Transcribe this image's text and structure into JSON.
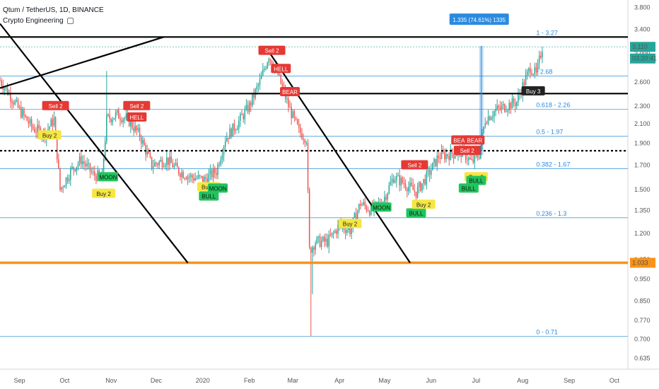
{
  "header": {
    "symbol": "Qtum / TetherUS, 1D, BINANCE",
    "indicator": "Crypto Engineering",
    "indicator_icon": "eye-icon"
  },
  "colors": {
    "up": "#26a69a",
    "down": "#ef5350",
    "fib": "#4a9fd8",
    "trend": "#000000",
    "support": "#f7931a",
    "measure": "#2a8be0",
    "sell_label": "#e53935",
    "buy_label": "#f5e642",
    "bull_label": "#21c45d"
  },
  "chart_data": {
    "type": "candlestick",
    "y_axis_scale": "log",
    "y_ticks": [
      "3.800",
      "3.400",
      "3.000",
      "2.600",
      "2.300",
      "2.100",
      "1.900",
      "1.700",
      "1.500",
      "1.350",
      "1.200",
      "1.050",
      "0.950",
      "0.850",
      "0.770",
      "0.700",
      "0.635"
    ],
    "x_ticks": [
      "Sep",
      "Oct",
      "Nov",
      "Dec",
      "2020",
      "Feb",
      "Mar",
      "Apr",
      "May",
      "Jun",
      "Jul",
      "Aug",
      "Sep",
      "Oct"
    ],
    "x_range": [
      "2019-08-19",
      "2020-10-10"
    ],
    "price_range": [
      0.6,
      3.95
    ],
    "fib_levels": [
      {
        "label": "1 - 3.27",
        "price": 3.27
      },
      {
        "label": "- 2.68",
        "price": 2.68
      },
      {
        "label": "0.618 - 2.26",
        "price": 2.26
      },
      {
        "label": "0.5 - 1.97",
        "price": 1.97
      },
      {
        "label": "0.382 - 1.67",
        "price": 1.67
      },
      {
        "label": "0.236 - 1.3",
        "price": 1.3
      },
      {
        "label": "0 - 0.71",
        "price": 0.71
      }
    ],
    "horizontal_lines": [
      {
        "price": 3.27,
        "style": "solid",
        "color": "#000000"
      },
      {
        "price": 2.45,
        "style": "solid",
        "color": "#000000"
      },
      {
        "price": 1.83,
        "style": "dotted",
        "color": "#000000"
      },
      {
        "price": 1.033,
        "style": "solid",
        "color": "#f7931a"
      }
    ],
    "trendlines": [
      {
        "from": [
          "2019-08-19",
          2.52
        ],
        "to": [
          "2019-12-06",
          3.27
        ]
      },
      {
        "from": [
          "2019-08-19",
          3.5
        ],
        "to": [
          "2019-12-22",
          1.033
        ]
      },
      {
        "from": [
          "2020-02-15",
          3.0
        ],
        "to": [
          "2020-05-18",
          1.033
        ]
      }
    ],
    "measure": {
      "label": "1.335 (74.61%) 1335",
      "from": [
        "2020-07-03",
        1.79
      ],
      "to": [
        "2020-07-03",
        3.125
      ]
    },
    "price_badges": [
      {
        "text": "3.110",
        "price": 3.11,
        "color": "#26a69a"
      },
      {
        "text": "03:20:41",
        "price": 2.93,
        "color": "#26a69a"
      },
      {
        "text": "1.033",
        "price": 1.033,
        "color": "#f7931a"
      }
    ],
    "signals": [
      {
        "text": "Sell 2",
        "kind": "sell",
        "date": "2019-09-25",
        "price": 2.3
      },
      {
        "text": "Buy 2",
        "kind": "buy",
        "date": "2019-09-21",
        "price": 1.98
      },
      {
        "text": "Sell 2",
        "kind": "sell",
        "date": "2019-11-18",
        "price": 2.3
      },
      {
        "text": "HELL",
        "kind": "sell",
        "date": "2019-11-18",
        "price": 2.17
      },
      {
        "text": "MOON",
        "kind": "bull",
        "date": "2019-10-30",
        "price": 1.6
      },
      {
        "text": "Buy 2",
        "kind": "buy",
        "date": "2019-10-27",
        "price": 1.47
      },
      {
        "text": "Buy 2",
        "kind": "buy",
        "date": "2020-01-05",
        "price": 1.52
      },
      {
        "text": "MOON",
        "kind": "bull",
        "date": "2020-01-11",
        "price": 1.51
      },
      {
        "text": "BULL",
        "kind": "bull",
        "date": "2020-01-05",
        "price": 1.45
      },
      {
        "text": "Sell 2",
        "kind": "sell",
        "date": "2020-02-16",
        "price": 3.05
      },
      {
        "text": "HELL",
        "kind": "sell",
        "date": "2020-02-22",
        "price": 2.78
      },
      {
        "text": "BEAR",
        "kind": "sell",
        "date": "2020-02-28",
        "price": 2.47
      },
      {
        "text": "Buy 2",
        "kind": "buy",
        "date": "2020-04-08",
        "price": 1.26
      },
      {
        "text": "MOON",
        "kind": "bull",
        "date": "2020-04-29",
        "price": 1.37
      },
      {
        "text": "BULL",
        "kind": "bull",
        "date": "2020-05-22",
        "price": 1.33
      },
      {
        "text": "Buy 2",
        "kind": "buy",
        "date": "2020-05-27",
        "price": 1.39
      },
      {
        "text": "Sell 2",
        "kind": "sell",
        "date": "2020-05-21",
        "price": 1.7
      },
      {
        "text": "BEAR",
        "kind": "sell",
        "date": "2020-06-21",
        "price": 1.93
      },
      {
        "text": "BEAR",
        "kind": "sell",
        "date": "2020-06-30",
        "price": 1.93
      },
      {
        "text": "Sell 2",
        "kind": "sell",
        "date": "2020-06-25",
        "price": 1.83
      },
      {
        "text": "BULL",
        "kind": "bull",
        "date": "2020-06-26",
        "price": 1.51
      },
      {
        "text": "Buy 2",
        "kind": "buy",
        "date": "2020-07-01",
        "price": 1.6
      },
      {
        "text": "BULL",
        "kind": "bull",
        "date": "2020-07-01",
        "price": 1.57
      },
      {
        "text": "Buy 3",
        "kind": "dark",
        "date": "2020-08-08",
        "price": 2.48
      }
    ],
    "candle_close_path": [
      [
        "2019-08-19",
        2.62
      ],
      [
        "2019-08-25",
        2.45
      ],
      [
        "2019-09-01",
        2.25
      ],
      [
        "2019-09-10",
        2.05
      ],
      [
        "2019-09-18",
        2.0
      ],
      [
        "2019-09-24",
        2.15
      ],
      [
        "2019-09-28",
        1.5
      ],
      [
        "2019-10-05",
        1.65
      ],
      [
        "2019-10-12",
        1.75
      ],
      [
        "2019-10-20",
        1.62
      ],
      [
        "2019-10-26",
        1.6
      ],
      [
        "2019-10-29",
        2.15
      ],
      [
        "2019-11-05",
        2.2
      ],
      [
        "2019-11-12",
        2.15
      ],
      [
        "2019-11-20",
        1.98
      ],
      [
        "2019-11-28",
        1.7
      ],
      [
        "2019-12-08",
        1.75
      ],
      [
        "2019-12-16",
        1.65
      ],
      [
        "2019-12-24",
        1.6
      ],
      [
        "2020-01-02",
        1.58
      ],
      [
        "2020-01-10",
        1.65
      ],
      [
        "2020-01-16",
        1.95
      ],
      [
        "2020-01-24",
        2.1
      ],
      [
        "2020-02-01",
        2.3
      ],
      [
        "2020-02-08",
        2.6
      ],
      [
        "2020-02-14",
        2.98
      ],
      [
        "2020-02-20",
        2.7
      ],
      [
        "2020-02-27",
        2.3
      ],
      [
        "2020-03-05",
        2.02
      ],
      [
        "2020-03-10",
        1.95
      ],
      [
        "2020-03-12",
        1.1
      ],
      [
        "2020-03-16",
        1.15
      ],
      [
        "2020-03-24",
        1.15
      ],
      [
        "2020-04-01",
        1.25
      ],
      [
        "2020-04-08",
        1.22
      ],
      [
        "2020-04-15",
        1.4
      ],
      [
        "2020-04-22",
        1.35
      ],
      [
        "2020-04-30",
        1.42
      ],
      [
        "2020-05-07",
        1.6
      ],
      [
        "2020-05-14",
        1.55
      ],
      [
        "2020-05-22",
        1.48
      ],
      [
        "2020-05-30",
        1.62
      ],
      [
        "2020-06-06",
        1.78
      ],
      [
        "2020-06-14",
        1.8
      ],
      [
        "2020-06-22",
        1.82
      ],
      [
        "2020-06-28",
        1.72
      ],
      [
        "2020-07-03",
        1.8
      ],
      [
        "2020-07-07",
        2.15
      ],
      [
        "2020-07-14",
        2.25
      ],
      [
        "2020-07-21",
        2.3
      ],
      [
        "2020-07-28",
        2.35
      ],
      [
        "2020-08-01",
        2.55
      ],
      [
        "2020-08-06",
        2.8
      ],
      [
        "2020-08-10",
        2.7
      ],
      [
        "2020-08-14",
        3.11
      ]
    ]
  }
}
